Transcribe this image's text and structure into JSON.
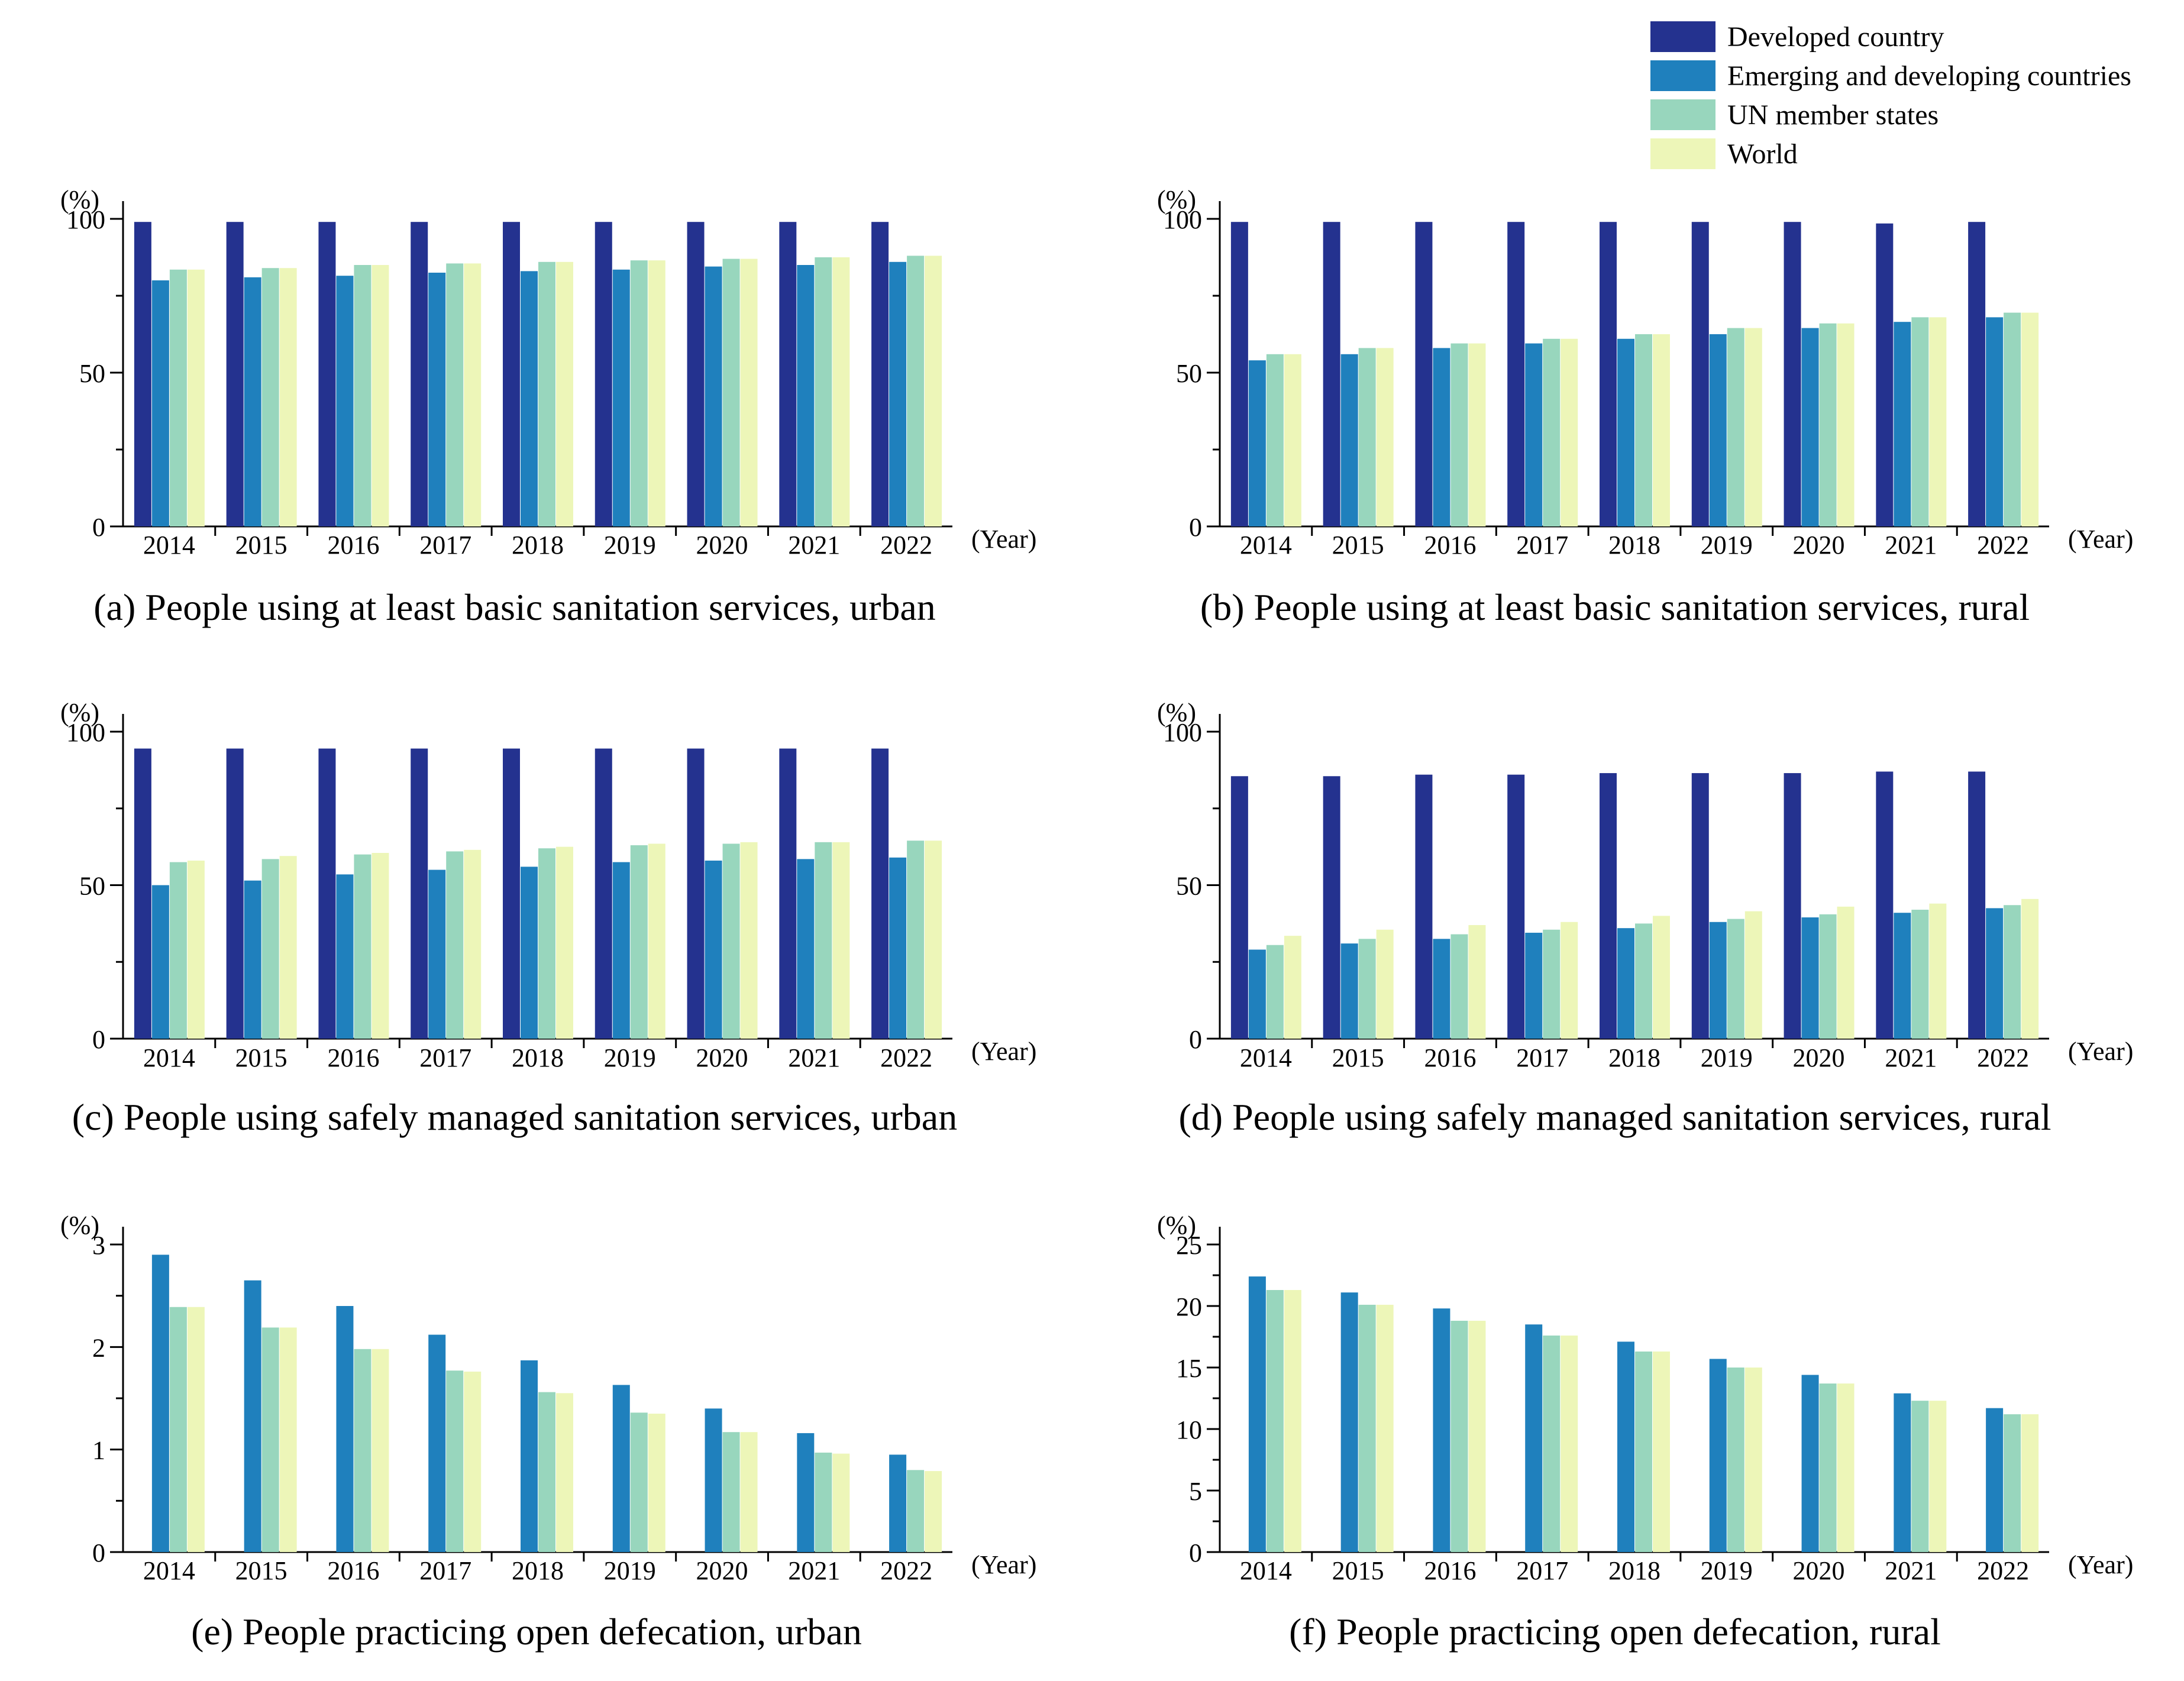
{
  "legend": {
    "items": [
      {
        "label": "Developed country",
        "color": "#24328f"
      },
      {
        "label": "Emerging and developing countries",
        "color": "#1f80bd"
      },
      {
        "label": "UN member states",
        "color": "#98d6bd"
      },
      {
        "label": "World",
        "color": "#edf6b8"
      }
    ]
  },
  "chart_data": [
    {
      "id": "a",
      "type": "bar",
      "title": "(a) People using at least basic sanitation services, urban",
      "ylabel": "(%)",
      "xlabel": "(Year)",
      "ylim": [
        0,
        100
      ],
      "yticks": [
        0,
        50,
        100
      ],
      "categories": [
        "2014",
        "2015",
        "2016",
        "2017",
        "2018",
        "2019",
        "2020",
        "2021",
        "2022"
      ],
      "series": [
        {
          "name": "Developed country",
          "values": [
            99,
            99,
            99,
            99,
            99,
            99,
            99,
            99,
            99
          ]
        },
        {
          "name": "Emerging and developing countries",
          "values": [
            80,
            81,
            81.5,
            82.5,
            83,
            83.5,
            84.5,
            85,
            86
          ]
        },
        {
          "name": "UN member states",
          "values": [
            83.5,
            84,
            85,
            85.5,
            86,
            86.5,
            87,
            87.5,
            88
          ]
        },
        {
          "name": "World",
          "values": [
            83.5,
            84,
            85,
            85.5,
            86,
            86.5,
            87,
            87.5,
            88
          ]
        }
      ]
    },
    {
      "id": "b",
      "type": "bar",
      "title": "(b) People using at least basic sanitation services, rural",
      "ylabel": "(%)",
      "xlabel": "(Year)",
      "ylim": [
        0,
        100
      ],
      "yticks": [
        0,
        50,
        100
      ],
      "categories": [
        "2014",
        "2015",
        "2016",
        "2017",
        "2018",
        "2019",
        "2020",
        "2021",
        "2022"
      ],
      "series": [
        {
          "name": "Developed country",
          "values": [
            99,
            99,
            99,
            99,
            99,
            99,
            99,
            98.5,
            99
          ]
        },
        {
          "name": "Emerging and developing countries",
          "values": [
            54,
            56,
            58,
            59.5,
            61,
            62.5,
            64.5,
            66.5,
            68
          ]
        },
        {
          "name": "UN member states",
          "values": [
            56,
            58,
            59.5,
            61,
            62.5,
            64.5,
            66,
            68,
            69.5
          ]
        },
        {
          "name": "World",
          "values": [
            56,
            58,
            59.5,
            61,
            62.5,
            64.5,
            66,
            68,
            69.5
          ]
        }
      ]
    },
    {
      "id": "c",
      "type": "bar",
      "title": "(c) People using safely managed sanitation services, urban",
      "ylabel": "(%)",
      "xlabel": "(Year)",
      "ylim": [
        0,
        100
      ],
      "yticks": [
        0,
        50,
        100
      ],
      "categories": [
        "2014",
        "2015",
        "2016",
        "2017",
        "2018",
        "2019",
        "2020",
        "2021",
        "2022"
      ],
      "series": [
        {
          "name": "Developed country",
          "values": [
            94.5,
            94.5,
            94.5,
            94.5,
            94.5,
            94.5,
            94.5,
            94.5,
            94.5
          ]
        },
        {
          "name": "Emerging and developing countries",
          "values": [
            50,
            51.5,
            53.5,
            55,
            56,
            57.5,
            58,
            58.5,
            59
          ]
        },
        {
          "name": "UN member states",
          "values": [
            57.5,
            58.5,
            60,
            61,
            62,
            63,
            63.5,
            64,
            64.5
          ]
        },
        {
          "name": "World",
          "values": [
            58,
            59.5,
            60.5,
            61.5,
            62.5,
            63.5,
            64,
            64,
            64.5
          ]
        }
      ]
    },
    {
      "id": "d",
      "type": "bar",
      "title": "(d) People using safely managed sanitation services, rural",
      "ylabel": "(%)",
      "xlabel": "(Year)",
      "ylim": [
        0,
        100
      ],
      "yticks": [
        0,
        50,
        100
      ],
      "categories": [
        "2014",
        "2015",
        "2016",
        "2017",
        "2018",
        "2019",
        "2020",
        "2021",
        "2022"
      ],
      "series": [
        {
          "name": "Developed country",
          "values": [
            85.5,
            85.5,
            86,
            86,
            86.5,
            86.5,
            86.5,
            87,
            87
          ]
        },
        {
          "name": "Emerging and developing countries",
          "values": [
            29,
            31,
            32.5,
            34.5,
            36,
            38,
            39.5,
            41,
            42.5
          ]
        },
        {
          "name": "UN member states",
          "values": [
            30.5,
            32.5,
            34,
            35.5,
            37.5,
            39,
            40.5,
            42,
            43.5
          ]
        },
        {
          "name": "World",
          "values": [
            33.5,
            35.5,
            37,
            38,
            40,
            41.5,
            43,
            44,
            45.5
          ]
        }
      ]
    },
    {
      "id": "e",
      "type": "bar",
      "title": "(e) People practicing open defecation, urban",
      "ylabel": "(%)",
      "xlabel": "(Year)",
      "ylim": [
        0,
        3
      ],
      "yticks": [
        0,
        1,
        2,
        3
      ],
      "categories": [
        "2014",
        "2015",
        "2016",
        "2017",
        "2018",
        "2019",
        "2020",
        "2021",
        "2022"
      ],
      "series": [
        {
          "name": "Emerging and developing countries",
          "values": [
            2.9,
            2.65,
            2.4,
            2.12,
            1.87,
            1.63,
            1.4,
            1.16,
            0.95
          ]
        },
        {
          "name": "UN member states",
          "values": [
            2.39,
            2.19,
            1.98,
            1.77,
            1.56,
            1.36,
            1.17,
            0.97,
            0.8
          ]
        },
        {
          "name": "World",
          "values": [
            2.39,
            2.19,
            1.98,
            1.76,
            1.55,
            1.35,
            1.17,
            0.96,
            0.79
          ]
        }
      ]
    },
    {
      "id": "f",
      "type": "bar",
      "title": "(f) People practicing open defecation, rural",
      "ylabel": "(%)",
      "xlabel": "(Year)",
      "ylim": [
        0,
        25
      ],
      "yticks": [
        0,
        5,
        10,
        15,
        20,
        25
      ],
      "categories": [
        "2014",
        "2015",
        "2016",
        "2017",
        "2018",
        "2019",
        "2020",
        "2021",
        "2022"
      ],
      "series": [
        {
          "name": "Emerging and developing countries",
          "values": [
            22.4,
            21.1,
            19.8,
            18.5,
            17.1,
            15.7,
            14.4,
            12.9,
            11.7
          ]
        },
        {
          "name": "UN member states",
          "values": [
            21.3,
            20.1,
            18.8,
            17.6,
            16.3,
            15,
            13.7,
            12.3,
            11.2
          ]
        },
        {
          "name": "World",
          "values": [
            21.3,
            20.1,
            18.8,
            17.6,
            16.3,
            15,
            13.7,
            12.3,
            11.2
          ]
        }
      ]
    }
  ]
}
